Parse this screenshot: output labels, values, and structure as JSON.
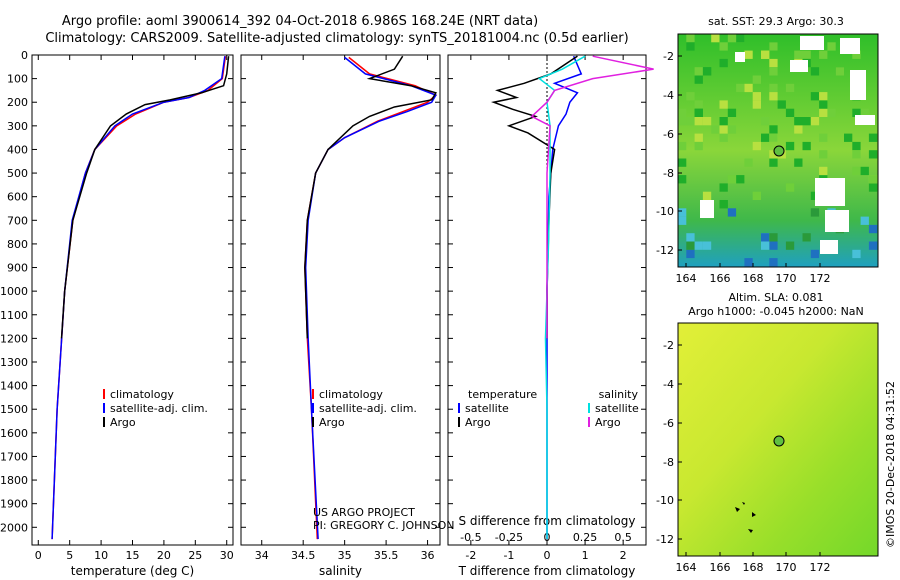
{
  "header": {
    "title_line1": "Argo profile: aoml 3900614_392 04-Oct-2018 6.986S 168.24E (NRT data)",
    "title_line2": "Climatology: CARS2009. Satellite-adjusted climatology: synTS_20181004.nc (0.5d earlier)"
  },
  "credits": {
    "line1": "US ARGO PROJECT",
    "line2": "PI: GREGORY C. JOHNSON",
    "stamp": "©IMOS 20-Dec-2018 04:31:52"
  },
  "colors": {
    "climatology": "#ff0000",
    "satellite_adj": "#0000ff",
    "argo": "#000000",
    "salinity_sat": "#00e0e0",
    "salinity_argo": "#e020e0"
  },
  "maps": {
    "sst_title": "sat. SST: 29.3 Argo: 30.3",
    "sla_title_line1": "Altim. SLA: 0.081",
    "sla_title_line2": "Argo h1000: -0.045 h2000: NaN",
    "x_ticks": [
      "164",
      "166",
      "168",
      "170",
      "172"
    ],
    "y_ticks": [
      "-2",
      "-4",
      "-6",
      "-8",
      "-10",
      "-12"
    ]
  },
  "chart_data": [
    {
      "type": "line",
      "panel": "temperature",
      "xlabel": "temperature (deg C)",
      "xlim": [
        -1,
        31
      ],
      "ylim": [
        2075,
        0
      ],
      "x_ticks": [
        "0",
        "5",
        "10",
        "15",
        "20",
        "25",
        "30"
      ],
      "y_ticks": [
        "0",
        "100",
        "200",
        "300",
        "400",
        "500",
        "600",
        "700",
        "800",
        "900",
        "1000",
        "1100",
        "1200",
        "1300",
        "1400",
        "1500",
        "1600",
        "1700",
        "1800",
        "1900",
        "2000"
      ],
      "legend": [
        "climatology",
        "satellite-adj. clim.",
        "Argo"
      ],
      "series": [
        {
          "name": "climatology",
          "depth": [
            5,
            100,
            150,
            180,
            200,
            250,
            300,
            400,
            500,
            700,
            1000,
            1500,
            2050
          ],
          "values": [
            29.8,
            29.3,
            27,
            24,
            20,
            15.5,
            12.5,
            9,
            7.5,
            5.5,
            4.2,
            3,
            2.2
          ]
        },
        {
          "name": "satellite-adj. clim.",
          "depth": [
            5,
            100,
            150,
            180,
            200,
            250,
            300,
            400,
            500,
            700,
            1000,
            1500,
            2050
          ],
          "values": [
            29.7,
            29.2,
            26.5,
            24,
            20,
            15,
            12.2,
            9,
            7.5,
            5.4,
            4.2,
            3,
            2.2
          ]
        },
        {
          "name": "Argo",
          "depth": [
            5,
            80,
            130,
            160,
            190,
            210,
            250,
            300,
            400,
            500,
            700,
            1000,
            1200
          ],
          "values": [
            30.3,
            30,
            29.5,
            26,
            21,
            17,
            14,
            11.5,
            9,
            7.7,
            5.5,
            4.2,
            3.7
          ]
        }
      ]
    },
    {
      "type": "line",
      "panel": "salinity",
      "xlabel": "salinity",
      "xlim": [
        33.75,
        36.15
      ],
      "ylim": [
        2075,
        0
      ],
      "x_ticks": [
        "34",
        "34.5",
        "35",
        "35.5",
        "36"
      ],
      "legend": [
        "climatology",
        "satellite-adj. clim.",
        "Argo"
      ],
      "series": [
        {
          "name": "climatology",
          "depth": [
            10,
            80,
            130,
            170,
            200,
            240,
            280,
            350,
            400,
            500,
            700,
            900,
            1200,
            1500,
            2050
          ],
          "values": [
            35.05,
            35.3,
            35.85,
            36.1,
            36.0,
            35.7,
            35.4,
            35.0,
            34.8,
            34.65,
            34.55,
            34.52,
            34.55,
            34.6,
            34.67
          ]
        },
        {
          "name": "satellite-adj. clim.",
          "depth": [
            10,
            80,
            130,
            170,
            200,
            240,
            280,
            350,
            400,
            500,
            700,
            900,
            1200,
            1500,
            2050
          ],
          "values": [
            35.0,
            35.25,
            35.8,
            36.1,
            36.05,
            35.75,
            35.42,
            35.0,
            34.8,
            34.65,
            34.56,
            34.53,
            34.56,
            34.6,
            34.68
          ]
        },
        {
          "name": "Argo",
          "depth": [
            5,
            60,
            100,
            130,
            160,
            190,
            220,
            260,
            300,
            400,
            500,
            700,
            900,
            1200
          ],
          "values": [
            35.7,
            35.6,
            35.3,
            35.8,
            36.1,
            36.05,
            35.6,
            35.3,
            35.1,
            34.8,
            34.65,
            34.55,
            34.52,
            34.55
          ]
        }
      ]
    },
    {
      "type": "line",
      "panel": "difference",
      "xlabel": "T difference from climatology",
      "x2label": "S difference from climatology",
      "xlim": [
        -2.6,
        2.6
      ],
      "ylim": [
        2075,
        0
      ],
      "x_ticks": [
        "-2",
        "-1",
        "0",
        "1",
        "2"
      ],
      "x2_ticks": [
        "-0.5",
        "-0.25",
        "0",
        "0.25",
        "0.5"
      ],
      "legend_left_title": "temperature",
      "legend_right_title": "salinity",
      "legend_left": [
        "satellite",
        "Argo"
      ],
      "legend_right": [
        "satellite",
        "Argo"
      ],
      "series": [
        {
          "name": "temperature satellite",
          "depth": [
            5,
            80,
            120,
            160,
            200,
            250,
            300,
            400,
            600,
            800,
            1000,
            1500,
            2050
          ],
          "values": [
            0.7,
            0.9,
            0.2,
            0.8,
            0.6,
            0.5,
            0.3,
            0.15,
            0.05,
            0.02,
            0.0,
            0.0,
            0.0
          ]
        },
        {
          "name": "temperature Argo",
          "depth": [
            5,
            80,
            120,
            150,
            180,
            200,
            230,
            260,
            300,
            330,
            400,
            500,
            700,
            1000,
            1200
          ],
          "values": [
            0.8,
            0.1,
            -0.6,
            -1.3,
            -0.8,
            -1.4,
            -0.9,
            -0.3,
            -1.0,
            -0.5,
            0.2,
            0.1,
            0.05,
            0.0,
            0.0
          ]
        },
        {
          "name": "salinity satellite",
          "depth": [
            5,
            60,
            100,
            150,
            200,
            300,
            500,
            800,
            1000,
            1200,
            1500,
            2050
          ],
          "values": [
            0.25,
            0.1,
            -0.05,
            0.05,
            0.0,
            0.02,
            0.02,
            0.01,
            0.0,
            -0.01,
            0.0,
            0.0
          ]
        },
        {
          "name": "salinity Argo",
          "depth": [
            5,
            60,
            100,
            150,
            200,
            260,
            300,
            500,
            800,
            1200
          ],
          "values": [
            0.3,
            0.7,
            0.3,
            0.05,
            0.0,
            -0.1,
            0.02,
            0.0,
            0.0,
            0.0
          ]
        }
      ]
    }
  ]
}
